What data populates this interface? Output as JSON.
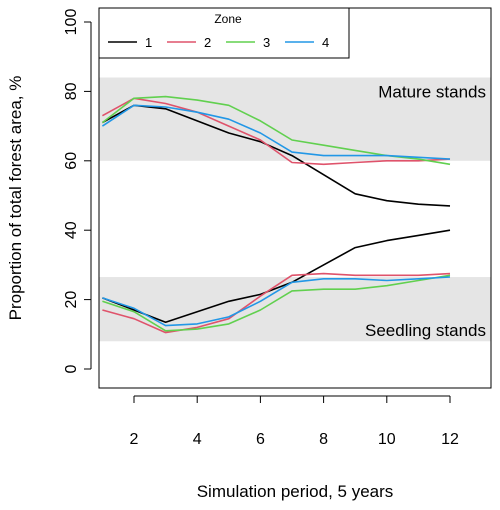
{
  "chart_data": {
    "type": "line",
    "xlabel": "Simulation period, 5 years",
    "ylabel": "Proportion of total forest area, %",
    "xlim": [
      1,
      12
    ],
    "ylim": [
      0,
      100
    ],
    "x_ticks": [
      2,
      4,
      6,
      8,
      10,
      12
    ],
    "y_ticks": [
      0,
      20,
      40,
      60,
      80,
      100
    ],
    "x": [
      1,
      2,
      3,
      4,
      5,
      6,
      7,
      8,
      9,
      10,
      11,
      12
    ],
    "bands": [
      {
        "label": "Mature stands",
        "y_range": [
          60,
          84
        ]
      },
      {
        "label": "Seedling stands",
        "y_range": [
          8,
          26.5
        ]
      }
    ],
    "legend": {
      "title": "Zone",
      "position": "top-left",
      "orientation": "horizontal"
    },
    "series": [
      {
        "name": "1",
        "color": "#000000",
        "group": "mature",
        "values": [
          71,
          76,
          75,
          71.5,
          68,
          65.5,
          61.5,
          56,
          50.5,
          48.5,
          47.5,
          47
        ]
      },
      {
        "name": "1",
        "color": "#000000",
        "group": "seedling",
        "values": [
          20.5,
          17,
          13.5,
          16.5,
          19.5,
          21.5,
          25,
          30,
          35,
          37,
          38.5,
          40
        ]
      },
      {
        "name": "2",
        "color": "#DF536B",
        "group": "mature",
        "values": [
          73,
          78,
          76.5,
          74,
          70,
          66,
          59.5,
          59,
          59.5,
          60,
          60,
          60.5
        ]
      },
      {
        "name": "2",
        "color": "#DF536B",
        "group": "seedling",
        "values": [
          17,
          14.5,
          10.5,
          12,
          14.5,
          21,
          27,
          27.5,
          27,
          27,
          27,
          27.5
        ]
      },
      {
        "name": "3",
        "color": "#61D04F",
        "group": "mature",
        "values": [
          71,
          78,
          78.5,
          77.5,
          76,
          71.5,
          66,
          64.5,
          63,
          61.5,
          60.5,
          59
        ]
      },
      {
        "name": "3",
        "color": "#61D04F",
        "group": "seedling",
        "values": [
          19.5,
          16.5,
          11,
          11.5,
          13,
          17,
          22.5,
          23,
          23,
          24,
          25.5,
          27
        ]
      },
      {
        "name": "4",
        "color": "#2297E6",
        "group": "mature",
        "values": [
          70,
          76,
          75.5,
          74,
          72,
          68,
          62.5,
          61.5,
          61.5,
          61.5,
          61,
          60.5
        ]
      },
      {
        "name": "4",
        "color": "#2297E6",
        "group": "seedling",
        "values": [
          20.5,
          17.5,
          12.5,
          13,
          15,
          19.5,
          25,
          26,
          26,
          25.5,
          26,
          26.5
        ]
      }
    ]
  }
}
